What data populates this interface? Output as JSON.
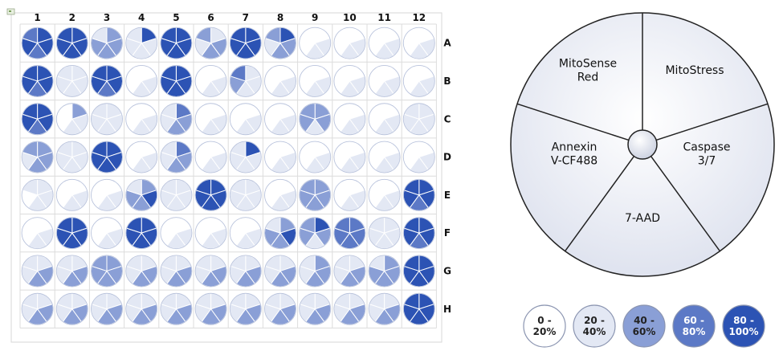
{
  "chart_data": {
    "type": "plate-pie-heatmap",
    "columns": [
      "1",
      "2",
      "3",
      "4",
      "5",
      "6",
      "7",
      "8",
      "9",
      "10",
      "11",
      "12"
    ],
    "rows": [
      "A",
      "B",
      "C",
      "D",
      "E",
      "F",
      "G",
      "H"
    ],
    "segments": [
      "MitoStress",
      "Caspase 3/7",
      "7-AAD",
      "Annexin V-CF488",
      "MitoSense Red"
    ],
    "key_labels": [
      {
        "segment": "MitoSense Red",
        "lines": [
          "MitoSense",
          "Red"
        ]
      },
      {
        "segment": "MitoStress",
        "lines": [
          "MitoStress"
        ]
      },
      {
        "segment": "Caspase 3/7",
        "lines": [
          "Caspase",
          "3/7"
        ]
      },
      {
        "segment": "7-AAD",
        "lines": [
          "7-AAD"
        ]
      },
      {
        "segment": "Annexin V-CF488",
        "lines": [
          "Annexin",
          "V-CF488"
        ]
      }
    ],
    "scale": [
      {
        "label_lines": [
          "0 -",
          "20%"
        ],
        "color": "#ffffff",
        "text_color": "#222222"
      },
      {
        "label_lines": [
          "20 -",
          "40%"
        ],
        "color": "#e3e8f4",
        "text_color": "#222222"
      },
      {
        "label_lines": [
          "40 -",
          "60%"
        ],
        "color": "#8a9fd6",
        "text_color": "#222222"
      },
      {
        "label_lines": [
          "60 -",
          "80%"
        ],
        "color": "#5c79c6",
        "text_color": "#ffffff"
      },
      {
        "label_lines": [
          "80 -",
          "100%"
        ],
        "color": "#2c53b4",
        "text_color": "#ffffff"
      }
    ],
    "segment_order_note_hidden": "",
    "level_scale": "0-4 index into scale",
    "wells": {
      "A": [
        [
          4,
          4,
          3,
          4,
          3
        ],
        [
          4,
          4,
          4,
          4,
          4
        ],
        [
          2,
          2,
          2,
          2,
          1
        ],
        [
          4,
          1,
          1,
          1,
          1
        ],
        [
          4,
          4,
          4,
          4,
          4
        ],
        [
          1,
          2,
          2,
          1,
          2
        ],
        [
          4,
          4,
          4,
          4,
          4
        ],
        [
          4,
          2,
          2,
          1,
          2
        ],
        [
          0,
          1,
          1,
          0,
          0
        ],
        [
          0,
          1,
          1,
          0,
          0
        ],
        [
          0,
          1,
          1,
          0,
          0
        ],
        [
          0,
          1,
          1,
          0,
          0
        ]
      ],
      "B": [
        [
          4,
          4,
          3,
          4,
          4
        ],
        [
          1,
          1,
          1,
          1,
          1
        ],
        [
          4,
          4,
          3,
          4,
          4
        ],
        [
          0,
          1,
          1,
          0,
          0
        ],
        [
          4,
          4,
          4,
          4,
          4
        ],
        [
          0,
          1,
          1,
          0,
          0
        ],
        [
          1,
          1,
          1,
          2,
          3
        ],
        [
          0,
          1,
          1,
          0,
          0
        ],
        [
          0,
          1,
          1,
          0,
          0
        ],
        [
          0,
          1,
          1,
          0,
          0
        ],
        [
          0,
          1,
          1,
          0,
          0
        ],
        [
          0,
          1,
          1,
          0,
          0
        ]
      ],
      "C": [
        [
          4,
          4,
          3,
          4,
          4
        ],
        [
          2,
          1,
          1,
          0,
          0
        ],
        [
          1,
          1,
          1,
          1,
          1
        ],
        [
          0,
          1,
          1,
          0,
          0
        ],
        [
          3,
          2,
          2,
          1,
          1
        ],
        [
          0,
          1,
          1,
          0,
          0
        ],
        [
          0,
          1,
          1,
          0,
          0
        ],
        [
          0,
          1,
          1,
          0,
          0
        ],
        [
          2,
          2,
          1,
          2,
          2
        ],
        [
          0,
          1,
          1,
          0,
          0
        ],
        [
          0,
          1,
          1,
          0,
          0
        ],
        [
          1,
          1,
          1,
          1,
          1
        ]
      ],
      "D": [
        [
          2,
          2,
          2,
          1,
          2
        ],
        [
          1,
          1,
          1,
          1,
          1
        ],
        [
          4,
          4,
          4,
          4,
          4
        ],
        [
          0,
          1,
          1,
          0,
          0
        ],
        [
          3,
          2,
          2,
          1,
          1
        ],
        [
          0,
          1,
          1,
          0,
          0
        ],
        [
          4,
          1,
          1,
          1,
          1
        ],
        [
          0,
          1,
          1,
          0,
          0
        ],
        [
          0,
          1,
          1,
          0,
          0
        ],
        [
          0,
          1,
          1,
          0,
          0
        ],
        [
          0,
          1,
          1,
          0,
          0
        ],
        [
          0,
          1,
          1,
          0,
          0
        ]
      ],
      "E": [
        [
          1,
          1,
          1,
          0,
          1
        ],
        [
          0,
          1,
          1,
          0,
          0
        ],
        [
          0,
          1,
          1,
          0,
          0
        ],
        [
          2,
          4,
          2,
          2,
          1
        ],
        [
          1,
          1,
          1,
          1,
          1
        ],
        [
          4,
          4,
          4,
          4,
          4
        ],
        [
          1,
          1,
          1,
          1,
          1
        ],
        [
          0,
          1,
          1,
          0,
          0
        ],
        [
          2,
          2,
          2,
          2,
          2
        ],
        [
          0,
          1,
          1,
          0,
          0
        ],
        [
          0,
          1,
          1,
          0,
          0
        ],
        [
          4,
          4,
          3,
          4,
          4
        ]
      ],
      "F": [
        [
          0,
          1,
          1,
          0,
          0
        ],
        [
          4,
          4,
          4,
          4,
          4
        ],
        [
          0,
          1,
          1,
          0,
          0
        ],
        [
          4,
          4,
          4,
          4,
          4
        ],
        [
          0,
          1,
          1,
          0,
          0
        ],
        [
          0,
          1,
          1,
          0,
          0
        ],
        [
          0,
          1,
          1,
          0,
          0
        ],
        [
          2,
          4,
          2,
          2,
          1
        ],
        [
          4,
          2,
          1,
          2,
          2
        ],
        [
          3,
          3,
          3,
          3,
          3
        ],
        [
          1,
          1,
          1,
          1,
          1
        ],
        [
          4,
          4,
          3,
          4,
          4
        ]
      ],
      "G": [
        [
          1,
          2,
          2,
          1,
          1
        ],
        [
          1,
          2,
          2,
          1,
          1
        ],
        [
          2,
          2,
          2,
          2,
          2
        ],
        [
          1,
          2,
          2,
          1,
          1
        ],
        [
          1,
          2,
          2,
          1,
          1
        ],
        [
          1,
          2,
          2,
          1,
          1
        ],
        [
          1,
          2,
          2,
          1,
          1
        ],
        [
          1,
          2,
          2,
          1,
          1
        ],
        [
          2,
          2,
          2,
          1,
          1
        ],
        [
          1,
          2,
          2,
          1,
          1
        ],
        [
          2,
          2,
          2,
          2,
          1
        ],
        [
          4,
          4,
          4,
          4,
          4
        ]
      ],
      "H": [
        [
          1,
          2,
          2,
          1,
          1
        ],
        [
          1,
          2,
          2,
          1,
          1
        ],
        [
          1,
          2,
          2,
          1,
          1
        ],
        [
          1,
          2,
          2,
          1,
          1
        ],
        [
          1,
          2,
          2,
          1,
          1
        ],
        [
          1,
          2,
          2,
          1,
          1
        ],
        [
          1,
          2,
          2,
          1,
          1
        ],
        [
          1,
          2,
          2,
          1,
          1
        ],
        [
          1,
          2,
          2,
          1,
          1
        ],
        [
          1,
          2,
          2,
          1,
          1
        ],
        [
          1,
          2,
          2,
          1,
          1
        ],
        [
          4,
          4,
          4,
          4,
          4
        ]
      ]
    }
  }
}
